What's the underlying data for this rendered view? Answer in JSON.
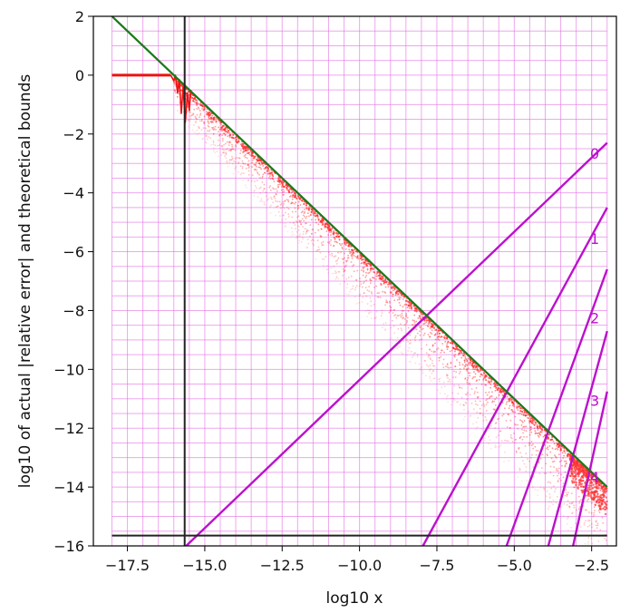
{
  "chart_data": {
    "type": "scatter",
    "title": "",
    "xlabel": "log10 x",
    "ylabel": "log10 of actual |relative error| and theoretical bounds",
    "xlim": [
      -18.6,
      -1.7
    ],
    "ylim": [
      -16,
      2
    ],
    "xticks": [
      -17.5,
      -15.0,
      -12.5,
      -10.0,
      -7.5,
      -5.0,
      -2.5
    ],
    "xtick_labels": [
      "−17.5",
      "−15.0",
      "−12.5",
      "−10.0",
      "−7.5",
      "−5.0",
      "−2.5"
    ],
    "yticks": [
      2,
      0,
      -2,
      -4,
      -6,
      -8,
      -10,
      -12,
      -14,
      -16
    ],
    "ytick_labels": [
      "2",
      "0",
      "−2",
      "−4",
      "−6",
      "−8",
      "−10",
      "−12",
      "−14",
      "−16"
    ],
    "grid": {
      "on": true,
      "color": "#e060e0",
      "x_start": -18,
      "x_end": -2,
      "x_step": 0.5,
      "y_start": -16,
      "y_end": 2,
      "y_step": 0.5
    },
    "vertical_line": {
      "x": -15.65,
      "color": "#222222"
    },
    "horizontal_line": {
      "y": -15.65,
      "color": "#222222",
      "x_range": [
        -18,
        -2
      ]
    },
    "green_bound": {
      "points": [
        [
          -18,
          2
        ],
        [
          -2,
          -14
        ]
      ],
      "color": "#1a7a1a"
    },
    "red_flat": {
      "points": [
        [
          -18,
          0
        ],
        [
          -16.1,
          0
        ]
      ],
      "color": "#ee1111"
    },
    "red_dip": {
      "points": [
        [
          -16.1,
          0
        ],
        [
          -16.0,
          -0.2
        ],
        [
          -15.95,
          0.0
        ],
        [
          -15.88,
          -0.6
        ],
        [
          -15.82,
          -0.15
        ],
        [
          -15.76,
          -1.3
        ],
        [
          -15.7,
          -0.4
        ],
        [
          -15.63,
          -1.6
        ],
        [
          -15.56,
          -0.6
        ],
        [
          -15.5,
          -1.2
        ],
        [
          -15.45,
          -0.5
        ]
      ],
      "color": "#ee1111"
    },
    "scatter_band": {
      "x_min": -16.0,
      "x_max": -2.0,
      "upper_offset": 0,
      "max_depth": 2.6,
      "color": "#ff3030"
    },
    "series": [
      {
        "name": "0",
        "label_pos": [
          -2.4,
          -2.7
        ],
        "points": [
          [
            -15.6,
            -16
          ],
          [
            -2.0,
            -2.3
          ]
        ],
        "color": "#bb11cc"
      },
      {
        "name": "1",
        "label_pos": [
          -2.4,
          -5.6
        ],
        "points": [
          [
            -7.95,
            -16
          ],
          [
            -2.0,
            -4.5
          ]
        ],
        "color": "#bb11cc"
      },
      {
        "name": "2",
        "label_pos": [
          -2.4,
          -8.3
        ],
        "points": [
          [
            -5.25,
            -16
          ],
          [
            -2.0,
            -6.6
          ]
        ],
        "color": "#bb11cc"
      },
      {
        "name": "3",
        "label_pos": [
          -2.4,
          -11.1
        ],
        "points": [
          [
            -3.9,
            -16
          ],
          [
            -2.0,
            -8.7
          ]
        ],
        "color": "#bb11cc"
      },
      {
        "name": "4",
        "label_pos": [
          -2.4,
          -13.7
        ],
        "points": [
          [
            -3.1,
            -16
          ],
          [
            -2.0,
            -10.75
          ]
        ],
        "color": "#bb11cc"
      }
    ]
  }
}
